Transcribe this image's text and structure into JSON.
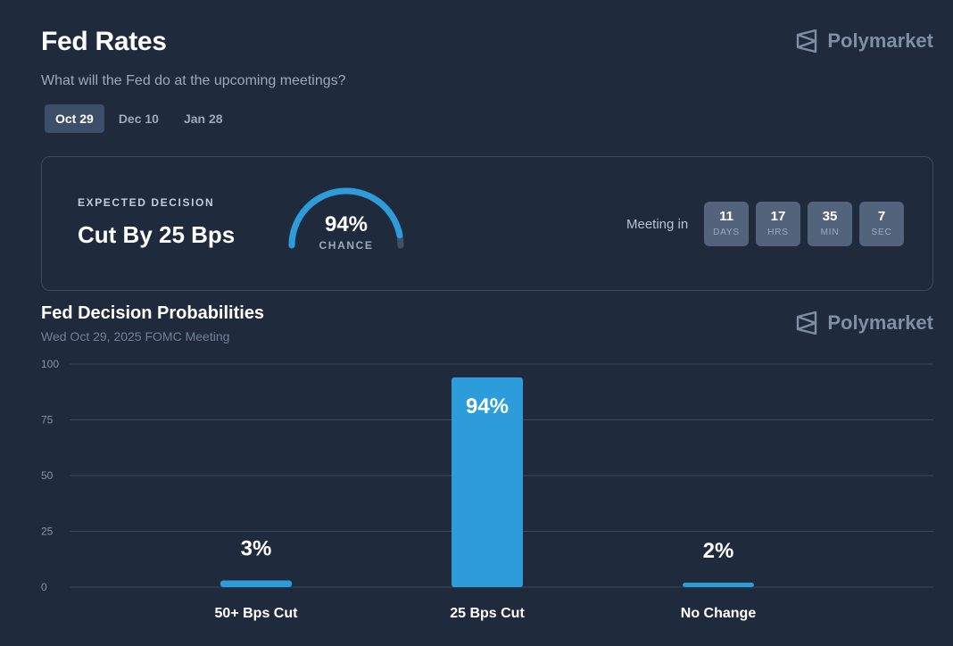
{
  "header": {
    "title": "Fed Rates",
    "subtitle": "What will the Fed do at the upcoming meetings?",
    "brand": "Polymarket"
  },
  "tabs": [
    {
      "label": "Oct 29",
      "active": true
    },
    {
      "label": "Dec 10",
      "active": false
    },
    {
      "label": "Jan 28",
      "active": false
    }
  ],
  "decision": {
    "label": "EXPECTED DECISION",
    "value": "Cut By 25 Bps",
    "chance_pct": "94%",
    "chance_label": "CHANCE",
    "chance_value": 94
  },
  "countdown": {
    "label": "Meeting in",
    "units": [
      {
        "value": "11",
        "unit": "DAYS"
      },
      {
        "value": "17",
        "unit": "HRS"
      },
      {
        "value": "35",
        "unit": "MIN"
      },
      {
        "value": "7",
        "unit": "SEC"
      }
    ]
  },
  "chart_section": {
    "title": "Fed Decision Probabilities",
    "subtitle": "Wed Oct 29, 2025 FOMC Meeting",
    "brand": "Polymarket"
  },
  "colors": {
    "background": "#1f2a3c",
    "accent": "#2d9cdb",
    "grid": "#3a4859",
    "muted_text": "#9aa9bd"
  },
  "chart_data": {
    "type": "bar",
    "categories": [
      "50+ Bps Cut",
      "25 Bps Cut",
      "No Change"
    ],
    "values": [
      3,
      94,
      2
    ],
    "value_labels": [
      "3%",
      "94%",
      "2%"
    ],
    "yticks": [
      "100",
      "75",
      "50",
      "25",
      "0"
    ],
    "ylim": [
      0,
      100
    ],
    "title": "Fed Decision Probabilities",
    "grid": true
  }
}
